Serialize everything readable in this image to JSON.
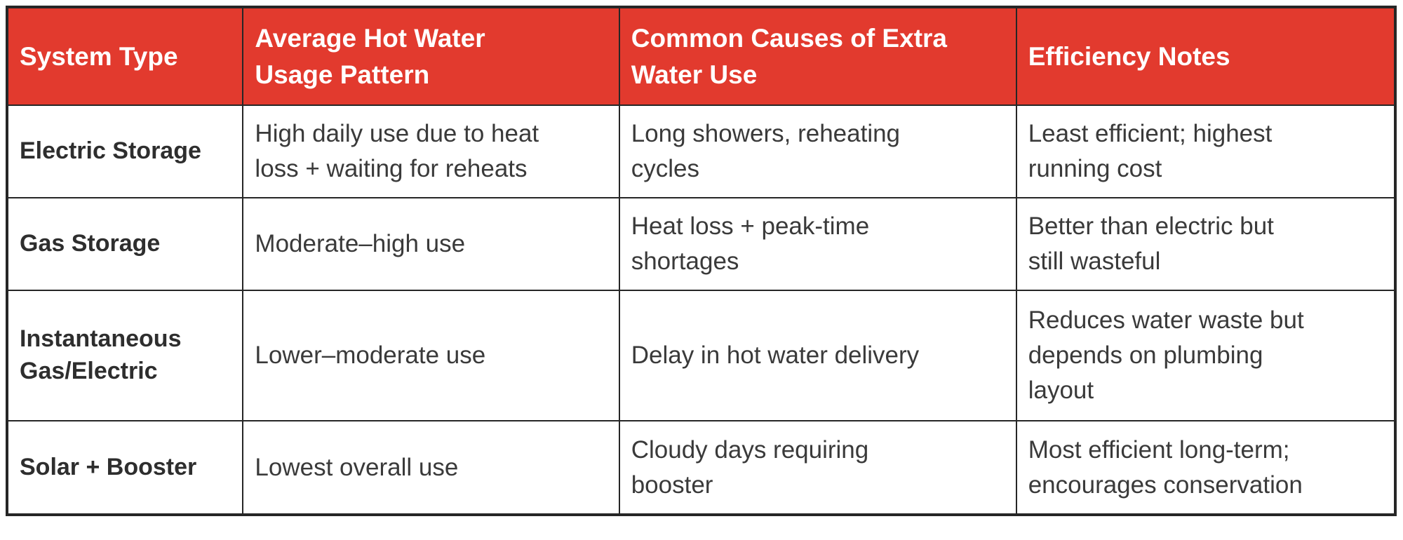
{
  "table": {
    "colors": {
      "header_bg": "#E23A2E",
      "header_text": "#FFFFFF",
      "body_text": "#3A3A3A",
      "row_header_text": "#2E2E2E",
      "border": "#262626",
      "background": "#FFFFFF"
    },
    "columns": [
      {
        "label": "System Type"
      },
      {
        "label": "Average Hot Water\nUsage Pattern"
      },
      {
        "label": "Common Causes of Extra\nWater Use"
      },
      {
        "label": "Efficiency Notes"
      }
    ],
    "rows": [
      {
        "system": "Electric Storage",
        "usage": "High daily use due to heat\nloss + waiting for reheats",
        "causes": "Long showers, reheating\ncycles",
        "notes": "Least efficient; highest\nrunning cost"
      },
      {
        "system": "Gas Storage",
        "usage": "Moderate–high use",
        "causes": "Heat loss + peak-time\nshortages",
        "notes": "Better than electric but\nstill wasteful"
      },
      {
        "system": "Instantaneous\nGas/Electric",
        "usage": "Lower–moderate use",
        "causes": "Delay in hot water delivery",
        "notes": "Reduces water waste but\ndepends on plumbing\nlayout"
      },
      {
        "system": "Solar + Booster",
        "usage": "Lowest overall use",
        "causes": "Cloudy days requiring\nbooster",
        "notes": "Most efficient long-term;\nencourages conservation"
      }
    ]
  }
}
